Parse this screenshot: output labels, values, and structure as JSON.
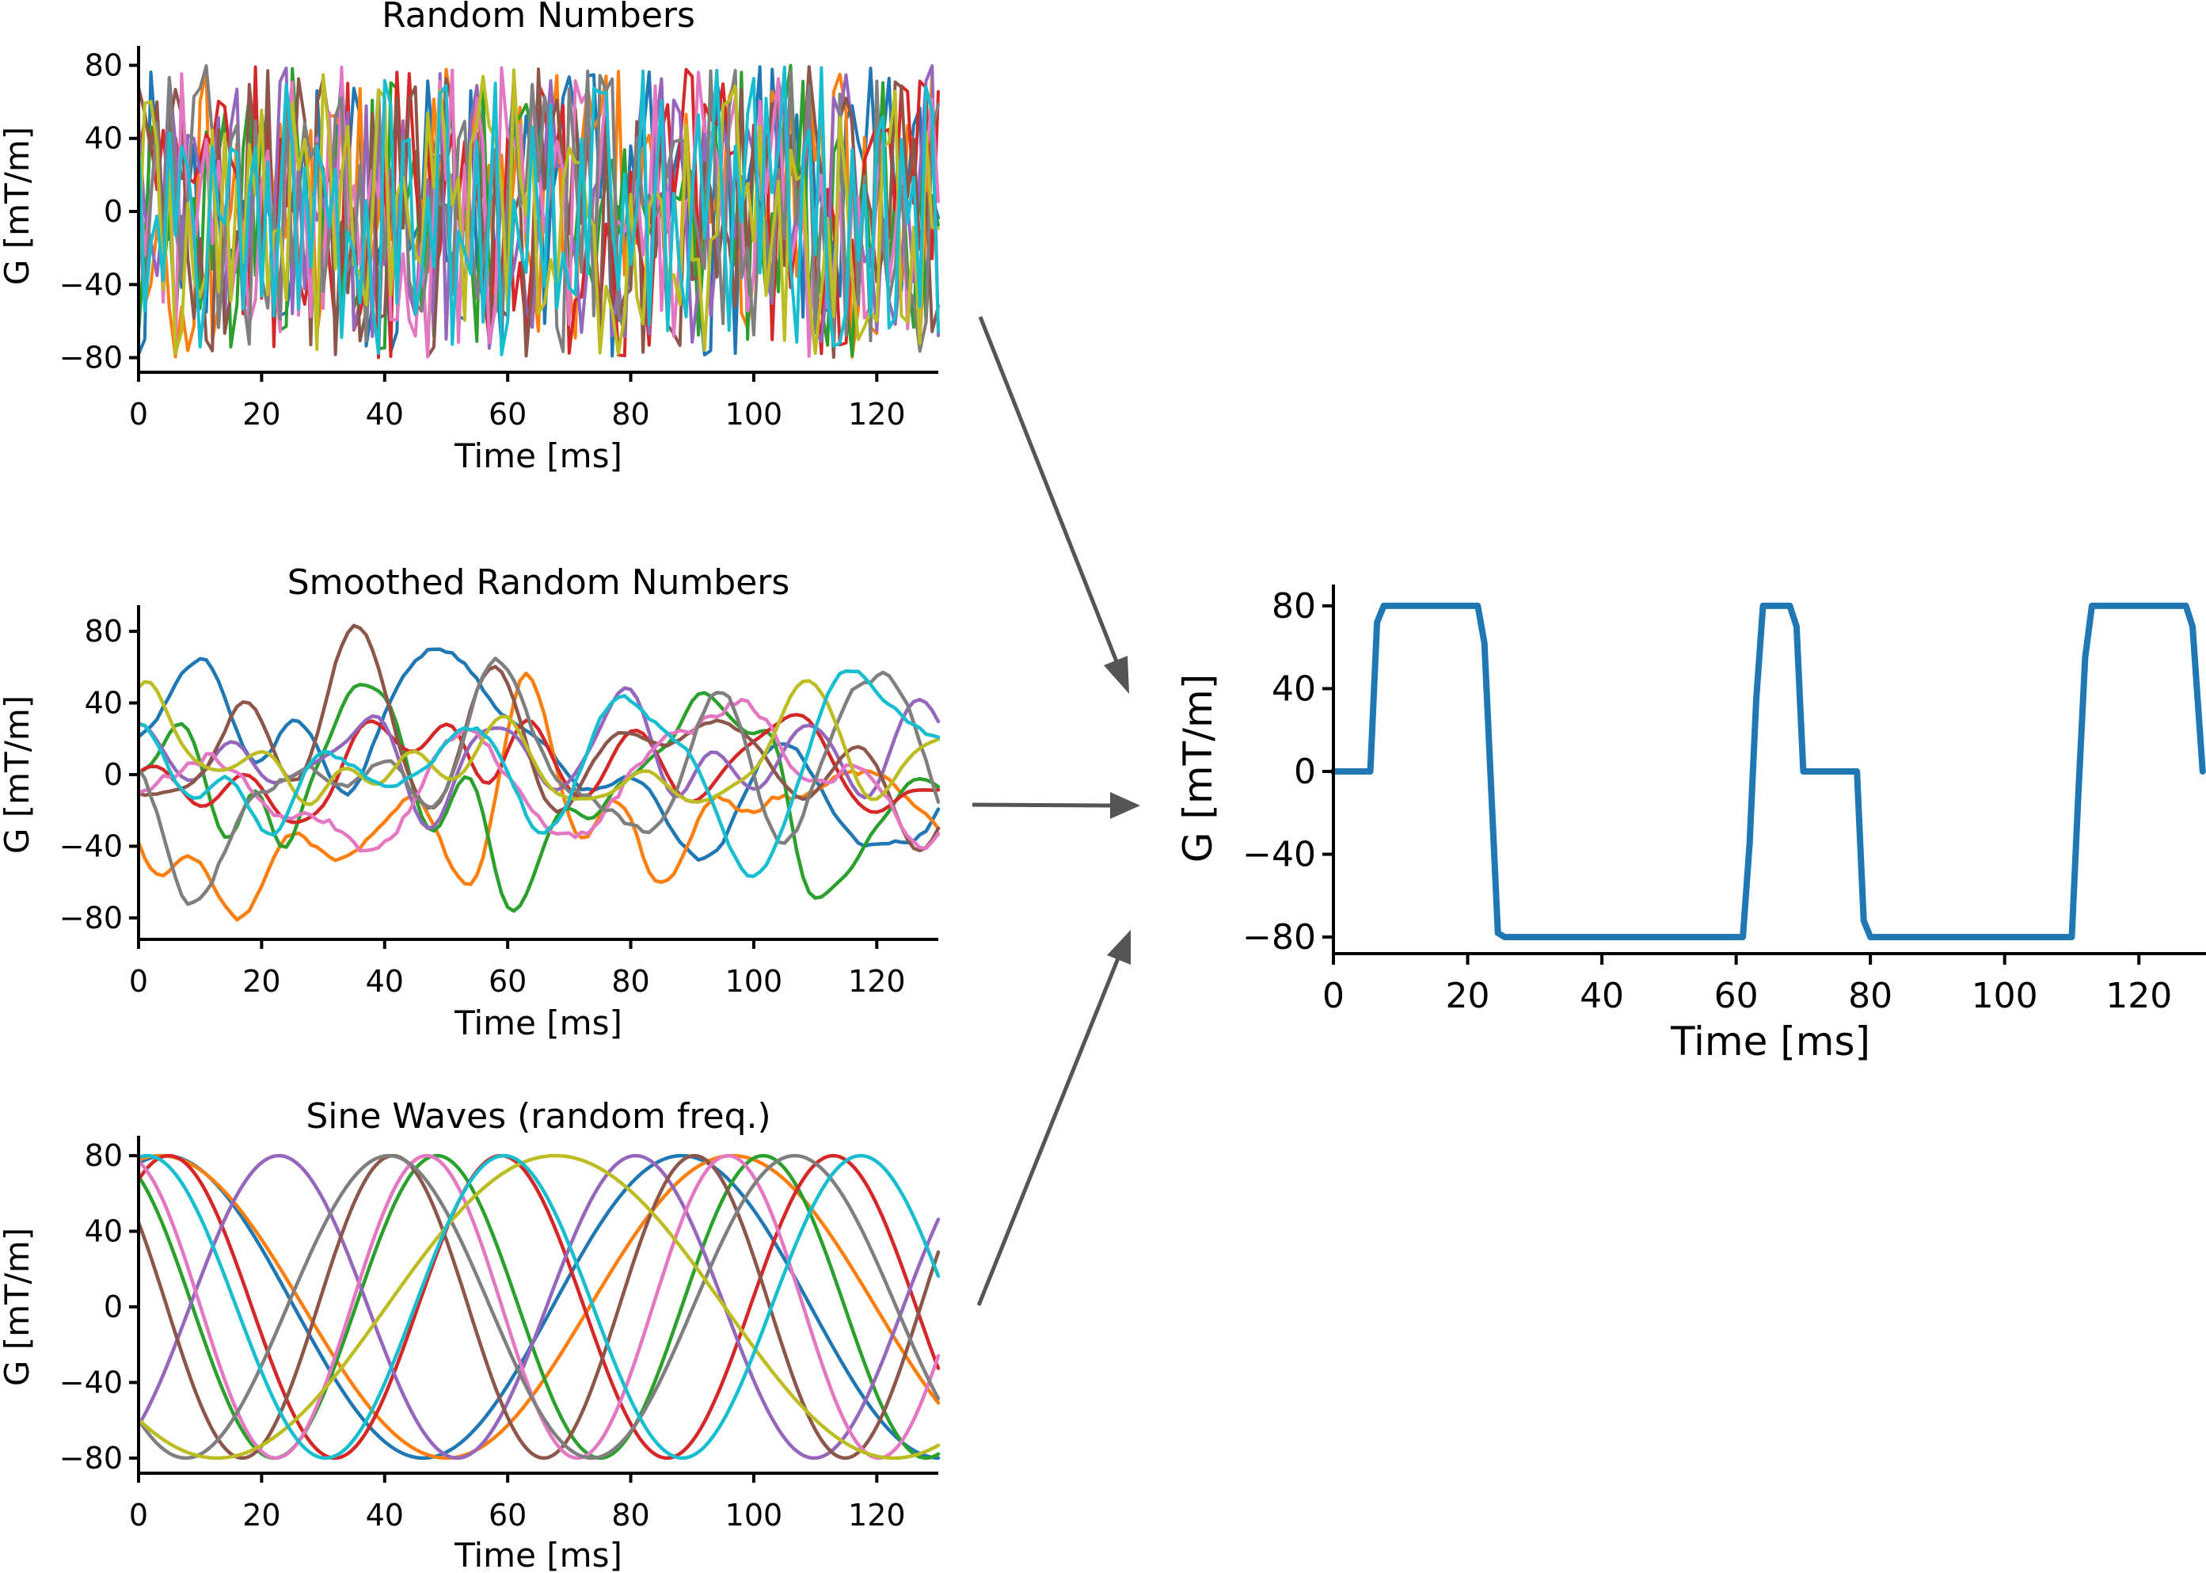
{
  "palette": [
    "#1f77b4",
    "#ff7f0e",
    "#2ca02c",
    "#d62728",
    "#9467bd",
    "#8c564b",
    "#e377c2",
    "#7f7f7f",
    "#bcbd22",
    "#17becf"
  ],
  "result_color": "#1f77b4",
  "arrow_color": "#555555",
  "chart_data": [
    {
      "id": "random",
      "type": "line",
      "title": "Random Numbers",
      "xlabel": "Time [ms]",
      "ylabel": "G [mT/m]",
      "xlim": [
        0,
        130
      ],
      "ylim": [
        -88,
        88
      ],
      "xticks": [
        0,
        20,
        40,
        60,
        80,
        100,
        120
      ],
      "yticks": [
        80,
        40,
        0,
        -40,
        -80
      ],
      "ytick_labels": [
        "80",
        "40",
        "0",
        "−40",
        "−80"
      ],
      "generator": "uniform_random",
      "n_series": 10,
      "n_points": 131,
      "amplitude": 80,
      "seed": 7
    },
    {
      "id": "smoothed",
      "type": "line",
      "title": "Smoothed Random Numbers",
      "xlabel": "Time [ms]",
      "ylabel": "G [mT/m]",
      "xlim": [
        0,
        130
      ],
      "ylim": [
        -92,
        92
      ],
      "xticks": [
        0,
        20,
        40,
        60,
        80,
        100,
        120
      ],
      "yticks": [
        80,
        40,
        0,
        -40,
        -80
      ],
      "ytick_labels": [
        "80",
        "40",
        "0",
        "−40",
        "−80"
      ],
      "generator": "smoothed_random",
      "n_series": 10,
      "n_points": 131,
      "amplitude": 80,
      "seed": 31
    },
    {
      "id": "sine",
      "type": "line",
      "title": "Sine Waves (random freq.)",
      "xlabel": "Time [ms]",
      "ylabel": "G [mT/m]",
      "xlim": [
        0,
        130
      ],
      "ylim": [
        -88,
        88
      ],
      "xticks": [
        0,
        20,
        40,
        60,
        80,
        100,
        120
      ],
      "yticks": [
        80,
        40,
        0,
        -40,
        -80
      ],
      "ytick_labels": [
        "80",
        "40",
        "0",
        "−40",
        "−80"
      ],
      "generator": "sine",
      "amplitude": 80,
      "sines": [
        {
          "period": 84,
          "phase": 1.25
        },
        {
          "period": 93,
          "phase": 1.33
        },
        {
          "period": 53,
          "phase": 2.1
        },
        {
          "period": 54,
          "phase": 1.0
        },
        {
          "period": 58,
          "phase": -0.9
        },
        {
          "period": 49,
          "phase": 2.55
        },
        {
          "period": 49,
          "phase": 1.85
        },
        {
          "period": 66,
          "phase": -2.3
        },
        {
          "period": 110,
          "phase": -2.3
        },
        {
          "period": 58,
          "phase": 1.42
        }
      ]
    },
    {
      "id": "result",
      "type": "line",
      "title": "",
      "xlabel": "Time [ms]",
      "ylabel": "G [mT/m]",
      "xlim": [
        0,
        130
      ],
      "ylim": [
        -88,
        88
      ],
      "xticks": [
        0,
        20,
        40,
        60,
        80,
        100,
        120
      ],
      "yticks": [
        80,
        40,
        0,
        -40,
        -80
      ],
      "ytick_labels": [
        "80",
        "40",
        "0",
        "−40",
        "−80"
      ],
      "series": [
        {
          "name": "result",
          "x": [
            0,
            5.5,
            6.5,
            7.5,
            21.5,
            22.5,
            24.5,
            25.5,
            61,
            62,
            63,
            64,
            68,
            69,
            70,
            78,
            79,
            80,
            110,
            111,
            112,
            113,
            127,
            128,
            129.5
          ],
          "y": [
            0,
            0,
            72,
            80,
            80,
            62,
            -78,
            -80,
            -80,
            -35,
            35,
            80,
            80,
            70,
            0,
            0,
            -72,
            -80,
            -80,
            -10,
            55,
            80,
            80,
            70,
            0
          ]
        }
      ]
    }
  ]
}
